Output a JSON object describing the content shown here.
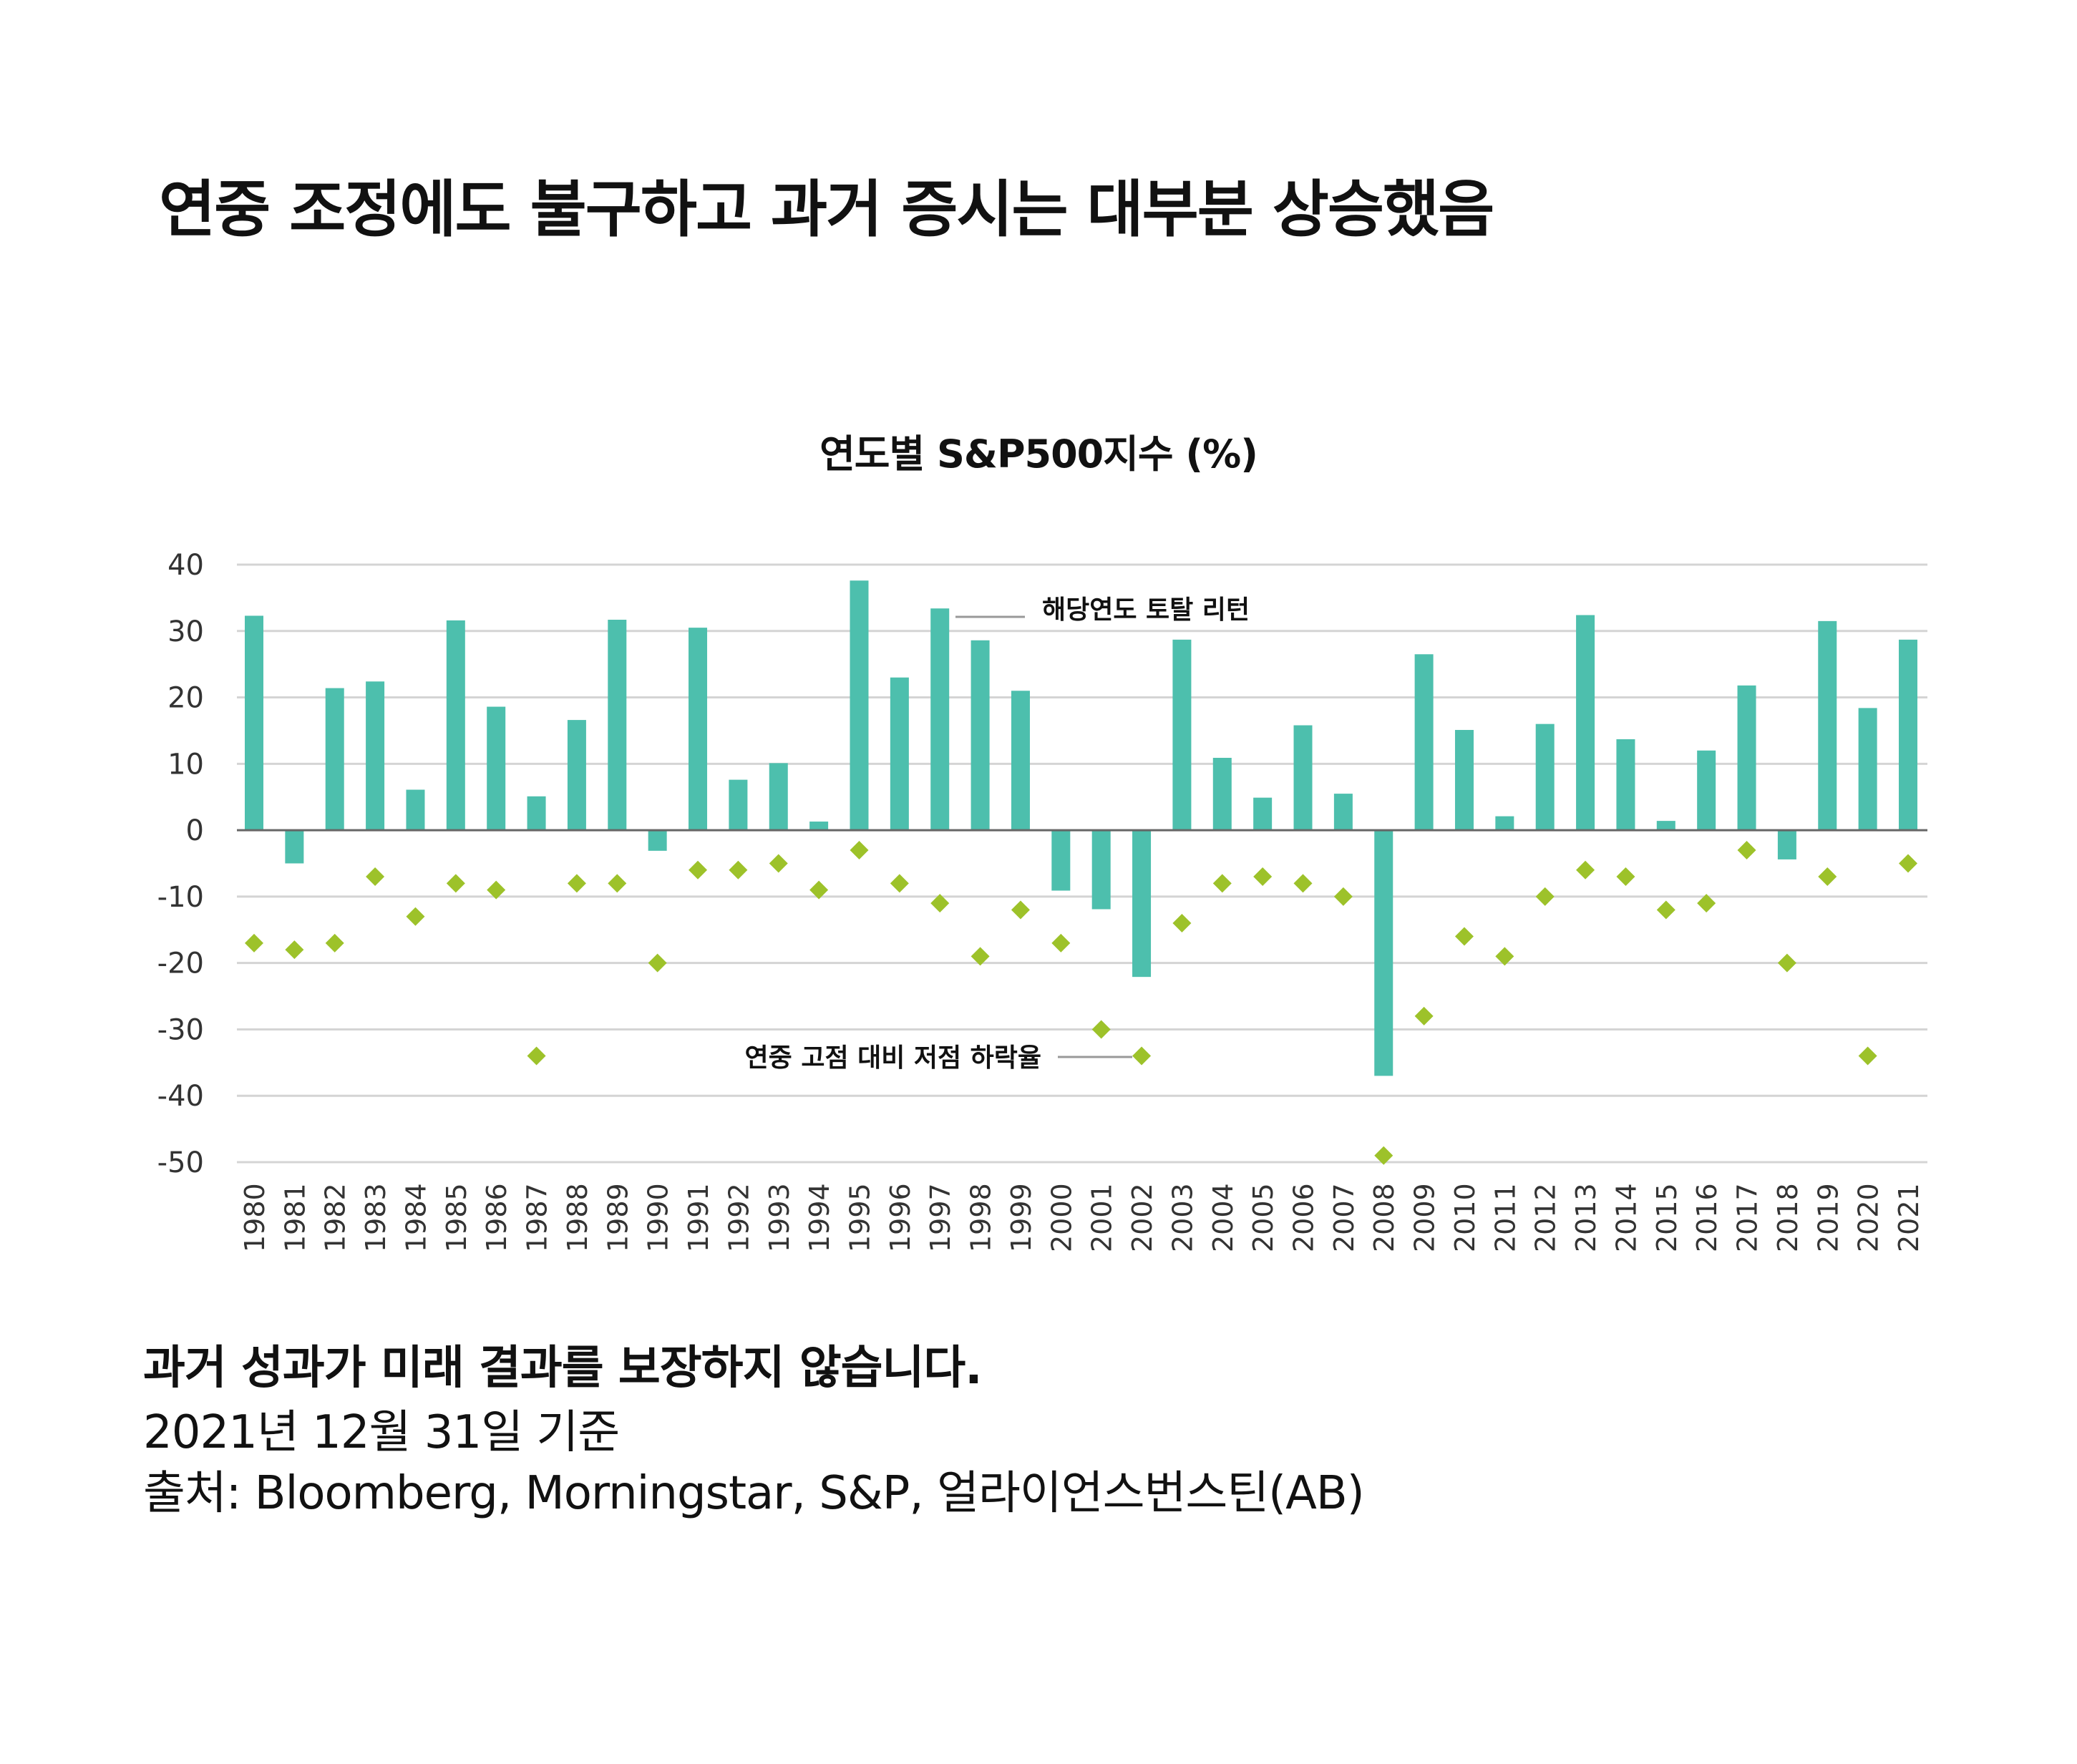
{
  "title": "연중 조정에도 불구하고 과거 증시는 대부분 상승했음",
  "footer": {
    "disclaimer": "과거 성과가 미래 결과를 보장하지 않습니다.",
    "as_of": "2021년 12월 31일 기준",
    "source": "출처: Bloomberg, Morningstar, S&P, 얼라이언스번스틴(AB)"
  },
  "chart_data": {
    "type": "bar",
    "title": "연도별 S&P500지수 (%)",
    "xlabel": "",
    "ylabel": "",
    "ylim": [
      -50,
      40
    ],
    "yticks": [
      40,
      30,
      20,
      10,
      0,
      -10,
      -20,
      -30,
      -40,
      -50
    ],
    "grid": true,
    "colors": {
      "bar": "#4dbfad",
      "marker": "#9dc22a",
      "grid": "#d4d4d4",
      "axis": "#666666"
    },
    "categories": [
      "1980",
      "1981",
      "1982",
      "1983",
      "1984",
      "1985",
      "1986",
      "1987",
      "1988",
      "1989",
      "1990",
      "1991",
      "1992",
      "1993",
      "1994",
      "1995",
      "1996",
      "1997",
      "1998",
      "1999",
      "2000",
      "2001",
      "2002",
      "2003",
      "2004",
      "2005",
      "2006",
      "2007",
      "2008",
      "2009",
      "2010",
      "2011",
      "2012",
      "2013",
      "2014",
      "2015",
      "2016",
      "2017",
      "2018",
      "2019",
      "2020",
      "2021"
    ],
    "series": [
      {
        "name": "해당연도 토탈 리턴",
        "type": "bar",
        "values": [
          32.3,
          -5.0,
          21.4,
          22.4,
          6.1,
          31.6,
          18.6,
          5.1,
          16.6,
          31.7,
          -3.1,
          30.5,
          7.6,
          10.1,
          1.3,
          37.6,
          23.0,
          33.4,
          28.6,
          21.0,
          -9.1,
          -11.9,
          -22.1,
          28.7,
          10.9,
          4.9,
          15.8,
          5.5,
          -37.0,
          26.5,
          15.1,
          2.1,
          16.0,
          32.4,
          13.7,
          1.4,
          12.0,
          21.8,
          -4.4,
          31.5,
          18.4,
          28.7
        ]
      },
      {
        "name": "연중 고점 대비 저점 하락율",
        "type": "scatter",
        "marker": "diamond",
        "values": [
          -17,
          -18,
          -17,
          -7,
          -13,
          -8,
          -9,
          -34,
          -8,
          -8,
          -20,
          -6,
          -6,
          -5,
          -9,
          -3,
          -8,
          -11,
          -19,
          -12,
          -17,
          -30,
          -34,
          -14,
          -8,
          -7,
          -8,
          -10,
          -49,
          -28,
          -16,
          -19,
          -10,
          -6,
          -7,
          -12,
          -11,
          -3,
          -20,
          -7,
          -34,
          -5
        ]
      }
    ]
  }
}
